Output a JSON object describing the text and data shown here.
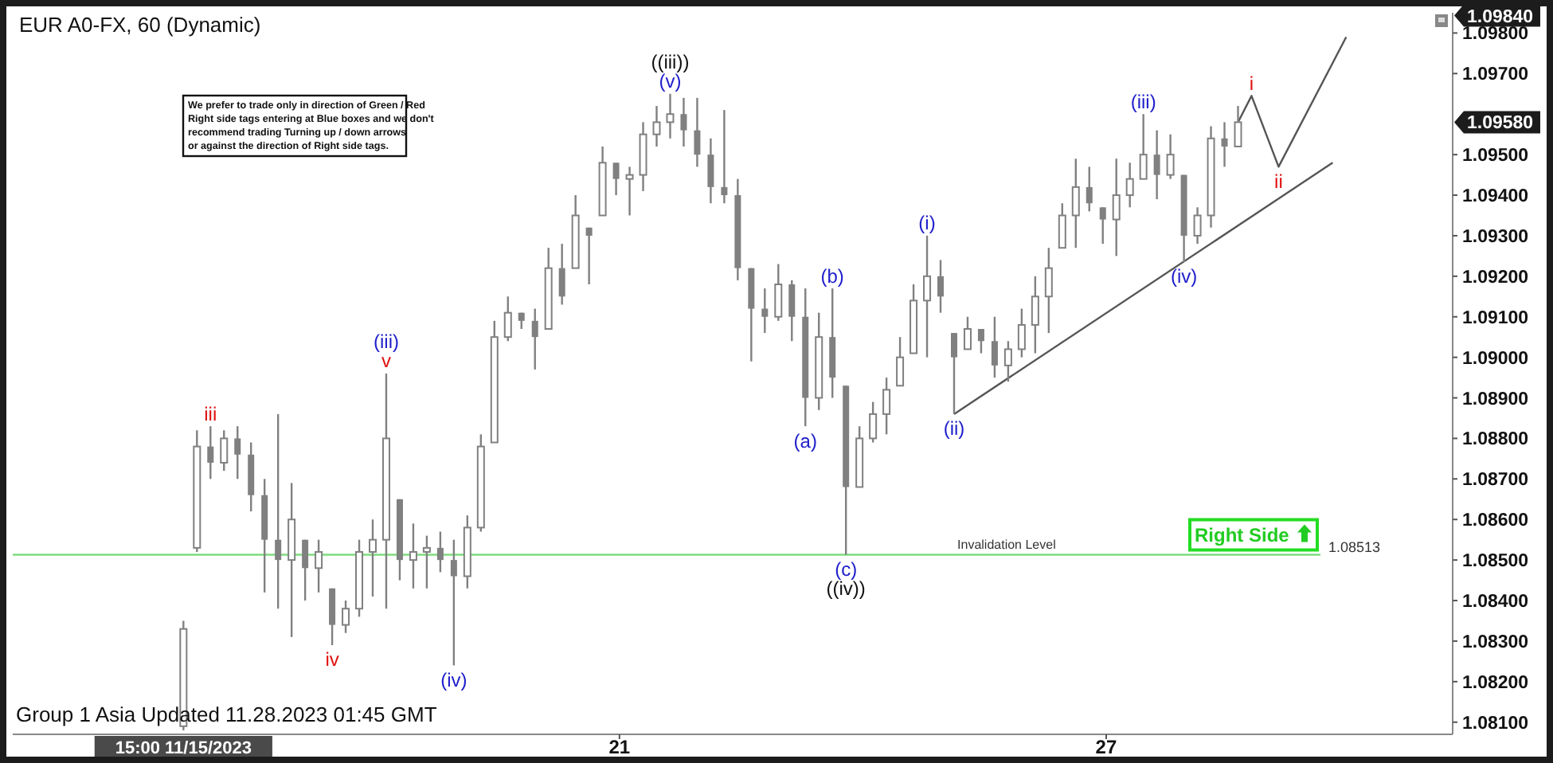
{
  "chart_data": {
    "type": "candlestick",
    "title": "EUR A0-FX, 60 (Dynamic)",
    "color": "#808080",
    "x": [
      "2023-11-15T15:00",
      "2023-11-15T19:00",
      "2023-11-15T23:00",
      "2023-11-16T03:00",
      "2023-11-16T07:00",
      "2023-11-16T11:00",
      "2023-11-16T15:00",
      "2023-11-16T19:00",
      "2023-11-16T23:00",
      "2023-11-17T03:00",
      "2023-11-17T07:00",
      "2023-11-17T11:00",
      "2023-11-17T15:00",
      "2023-11-17T19:00",
      "2023-11-17T23:00",
      "2023-11-18T03:00",
      "2023-11-18T07:00",
      "2023-11-18T11:00",
      "2023-11-18T15:00",
      "2023-11-18T19:00",
      "2023-11-18T23:00",
      "2023-11-19T03:00",
      "2023-11-19T07:00",
      "2023-11-19T11:00",
      "2023-11-19T15:00",
      "2023-11-19T19:00",
      "2023-11-19T23:00",
      "2023-11-20T03:00",
      "2023-11-20T07:00",
      "2023-11-20T11:00",
      "2023-11-20T15:00",
      "2023-11-20T19:00",
      "2023-11-20T23:00",
      "2023-11-21T03:00",
      "2023-11-21T07:00",
      "2023-11-21T11:00",
      "2023-11-21T15:00",
      "2023-11-21T19:00",
      "2023-11-21T23:00",
      "2023-11-22T03:00",
      "2023-11-22T07:00",
      "2023-11-22T11:00",
      "2023-11-22T15:00",
      "2023-11-22T19:00",
      "2023-11-22T23:00",
      "2023-11-23T03:00",
      "2023-11-23T07:00",
      "2023-11-23T11:00",
      "2023-11-23T15:00",
      "2023-11-23T19:00",
      "2023-11-23T23:00",
      "2023-11-24T03:00",
      "2023-11-24T07:00",
      "2023-11-24T11:00",
      "2023-11-24T15:00",
      "2023-11-24T19:00",
      "2023-11-24T23:00",
      "2023-11-25T03:00",
      "2023-11-25T07:00",
      "2023-11-25T11:00",
      "2023-11-25T15:00",
      "2023-11-25T19:00",
      "2023-11-25T23:00",
      "2023-11-26T03:00",
      "2023-11-26T07:00",
      "2023-11-26T11:00",
      "2023-11-26T15:00",
      "2023-11-26T19:00",
      "2023-11-26T23:00",
      "2023-11-27T03:00",
      "2023-11-27T07:00",
      "2023-11-27T11:00",
      "2023-11-27T15:00",
      "2023-11-27T19:00",
      "2023-11-27T23:00",
      "2023-11-28T03:00",
      "2023-11-28T07:00",
      "2023-11-28T11:00",
      "2023-11-28T15:00"
    ],
    "ohlc": [
      [
        1.0809,
        1.0835,
        1.0808,
        1.0833
      ],
      [
        1.0853,
        1.0882,
        1.0852,
        1.0878
      ],
      [
        1.0878,
        1.0883,
        1.087,
        1.0874
      ],
      [
        1.0874,
        1.0882,
        1.0872,
        1.088
      ],
      [
        1.088,
        1.0883,
        1.087,
        1.0876
      ],
      [
        1.0876,
        1.0879,
        1.0862,
        1.0866
      ],
      [
        1.0866,
        1.087,
        1.0842,
        1.0855
      ],
      [
        1.0855,
        1.0886,
        1.0838,
        1.085
      ],
      [
        1.085,
        1.0869,
        1.0831,
        1.086
      ],
      [
        1.0855,
        1.0855,
        1.084,
        1.0848
      ],
      [
        1.0848,
        1.0855,
        1.0842,
        1.0852
      ],
      [
        1.0843,
        1.0843,
        1.0829,
        1.0834
      ],
      [
        1.0834,
        1.084,
        1.0832,
        1.0838
      ],
      [
        1.0838,
        1.0855,
        1.0836,
        1.0852
      ],
      [
        1.0852,
        1.086,
        1.0841,
        1.0855
      ],
      [
        1.0855,
        1.0896,
        1.0838,
        1.088
      ],
      [
        1.0865,
        1.0865,
        1.0845,
        1.085
      ],
      [
        1.085,
        1.0859,
        1.0843,
        1.0852
      ],
      [
        1.0852,
        1.0856,
        1.0843,
        1.0853
      ],
      [
        1.0853,
        1.0857,
        1.0847,
        1.085
      ],
      [
        1.085,
        1.0855,
        1.0824,
        1.0846
      ],
      [
        1.0846,
        1.0861,
        1.0843,
        1.0858
      ],
      [
        1.0858,
        1.0881,
        1.0857,
        1.0878
      ],
      [
        1.0879,
        1.0909,
        1.0879,
        1.0905
      ],
      [
        1.0905,
        1.0915,
        1.0904,
        1.0911
      ],
      [
        1.0911,
        1.0911,
        1.0907,
        1.0909
      ],
      [
        1.0909,
        1.0912,
        1.0897,
        1.0905
      ],
      [
        1.0907,
        1.0927,
        1.0907,
        1.0922
      ],
      [
        1.0922,
        1.0928,
        1.0913,
        1.0915
      ],
      [
        1.0922,
        1.094,
        1.0922,
        1.0935
      ],
      [
        1.0932,
        1.0932,
        1.0918,
        1.093
      ],
      [
        1.0935,
        1.0952,
        1.0935,
        1.0948
      ],
      [
        1.0948,
        1.0948,
        1.094,
        1.0944
      ],
      [
        1.0944,
        1.0947,
        1.0935,
        1.0945
      ],
      [
        1.0945,
        1.0958,
        1.0941,
        1.0955
      ],
      [
        1.0955,
        1.0962,
        1.0952,
        1.0958
      ],
      [
        1.0958,
        1.0965,
        1.0954,
        1.096
      ],
      [
        1.096,
        1.0964,
        1.0952,
        1.0956
      ],
      [
        1.0956,
        1.0964,
        1.0947,
        1.095
      ],
      [
        1.095,
        1.0954,
        1.0938,
        1.0942
      ],
      [
        1.0942,
        1.0961,
        1.0938,
        1.094
      ],
      [
        1.094,
        1.0944,
        1.0919,
        1.0922
      ],
      [
        1.0922,
        1.0922,
        1.0899,
        1.0912
      ],
      [
        1.0912,
        1.0917,
        1.0906,
        1.091
      ],
      [
        1.091,
        1.0923,
        1.0909,
        1.0918
      ],
      [
        1.0918,
        1.0919,
        1.0904,
        1.091
      ],
      [
        1.091,
        1.0917,
        1.0883,
        1.089
      ],
      [
        1.089,
        1.0911,
        1.0887,
        1.0905
      ],
      [
        1.0905,
        1.0917,
        1.089,
        1.0895
      ],
      [
        1.0893,
        1.0893,
        1.08513,
        1.0868
      ],
      [
        1.0868,
        1.0883,
        1.0868,
        1.088
      ],
      [
        1.088,
        1.0889,
        1.0879,
        1.0886
      ],
      [
        1.0886,
        1.0895,
        1.0881,
        1.0892
      ],
      [
        1.0893,
        1.0905,
        1.0893,
        1.09
      ],
      [
        1.0901,
        1.0918,
        1.0901,
        1.0914
      ],
      [
        1.0914,
        1.093,
        1.09,
        1.092
      ],
      [
        1.092,
        1.0924,
        1.0911,
        1.0915
      ],
      [
        1.0906,
        1.0906,
        1.0886,
        1.09
      ],
      [
        1.0902,
        1.091,
        1.0902,
        1.0907
      ],
      [
        1.0907,
        1.0907,
        1.0901,
        1.0904
      ],
      [
        1.0904,
        1.091,
        1.0895,
        1.0898
      ],
      [
        1.0898,
        1.0904,
        1.0894,
        1.0902
      ],
      [
        1.0902,
        1.0912,
        1.09,
        1.0908
      ],
      [
        1.0908,
        1.092,
        1.0901,
        1.0915
      ],
      [
        1.0915,
        1.0927,
        1.0906,
        1.0922
      ],
      [
        1.0927,
        1.0938,
        1.0927,
        1.0935
      ],
      [
        1.0935,
        1.0949,
        1.0927,
        1.0942
      ],
      [
        1.0942,
        1.0947,
        1.0936,
        1.0938
      ],
      [
        1.0937,
        1.0937,
        1.0928,
        1.0934
      ],
      [
        1.0934,
        1.0949,
        1.0925,
        1.094
      ],
      [
        1.094,
        1.0948,
        1.0937,
        1.0944
      ],
      [
        1.0944,
        1.096,
        1.0944,
        1.095
      ],
      [
        1.095,
        1.0956,
        1.0939,
        1.0945
      ],
      [
        1.0945,
        1.0955,
        1.0944,
        1.095
      ],
      [
        1.0945,
        1.0945,
        1.09235,
        1.093
      ],
      [
        1.093,
        1.0937,
        1.0928,
        1.0935
      ],
      [
        1.0935,
        1.0957,
        1.0932,
        1.0954
      ],
      [
        1.0954,
        1.0958,
        1.0947,
        1.0952
      ],
      [
        1.0952,
        1.0962,
        1.0952,
        1.0958
      ]
    ],
    "series": [
      {
        "type": "line",
        "color": "#555555",
        "x": [
          "2023-11-28T15:00",
          "2023-11-28T19:00",
          "2023-11-29T03:00",
          "2023-11-29T23:00"
        ],
        "values": [
          1.0958,
          1.09645,
          1.0947,
          1.0979
        ]
      },
      {
        "type": "line",
        "color": "#555555",
        "x": [
          "2023-11-25T03:00",
          "2023-11-29T19:00"
        ],
        "values": [
          1.0886,
          1.0948
        ]
      }
    ],
    "xlim": [
      "2023-11-13T12:30",
      "2023-12-01T06:30"
    ],
    "xticks": [
      {
        "value": "2023-11-15T15:00",
        "label": "15:00 11/15/2023"
      },
      {
        "value": "2023-11-21",
        "label": "21"
      },
      {
        "value": "2023-11-27",
        "label": "27"
      }
    ],
    "ylim": [
      1.0807,
      1.0985
    ],
    "yticks": [
      {
        "value": 1.081,
        "label": "1.08100"
      },
      {
        "value": 1.082,
        "label": "1.08200"
      },
      {
        "value": 1.083,
        "label": "1.08300"
      },
      {
        "value": 1.084,
        "label": "1.08400"
      },
      {
        "value": 1.085,
        "label": "1.08500"
      },
      {
        "value": 1.086,
        "label": "1.08600"
      },
      {
        "value": 1.087,
        "label": "1.08700"
      },
      {
        "value": 1.088,
        "label": "1.08800"
      },
      {
        "value": 1.089,
        "label": "1.08900"
      },
      {
        "value": 1.09,
        "label": "1.09000"
      },
      {
        "value": 1.091,
        "label": "1.09100"
      },
      {
        "value": 1.092,
        "label": "1.09200"
      },
      {
        "value": 1.093,
        "label": "1.09300"
      },
      {
        "value": 1.094,
        "label": "1.09400"
      },
      {
        "value": 1.095,
        "label": "1.09500"
      },
      {
        "value": 1.097,
        "label": "1.09700"
      },
      {
        "value": 1.098,
        "label": "1.09800"
      }
    ],
    "ref_lines": [
      {
        "axis": "y",
        "value": 1.08513,
        "label": "Invalidation Level",
        "color": "#7ddc7d"
      }
    ],
    "annotations": [
      "We prefer to trade only in direction of Green / Red\nRight side tags entering at Blue boxes and we don't\nrecommend trading Turning up / down arrows\nor against the direction of Right side tags.",
      "Group 1 Asia Updated 11.28.2023 01:45 GMT",
      "Right Side",
      "1.08513",
      "1.09840",
      "1.09580",
      {
        "text": "iii",
        "x": "2023-11-15T23:00",
        "y": 1.0883
      },
      {
        "text": "v",
        "x": "2023-11-18T03:00",
        "y": 1.0896
      },
      {
        "text": "(iii)",
        "x": "2023-11-18T03:00",
        "y": 1.0896
      },
      {
        "text": "iv",
        "x": "2023-11-17T11:00",
        "y": 1.0829
      },
      {
        "text": "(iv)",
        "x": "2023-11-18T23:00",
        "y": 1.0824
      },
      {
        "text": "(v)",
        "x": "2023-11-21T15:00",
        "y": 1.0965
      },
      {
        "text": "((iii))",
        "x": "2023-11-21T15:00",
        "y": 1.0965
      },
      {
        "text": "(a)",
        "x": "2023-11-23T07:00",
        "y": 1.0883
      },
      {
        "text": "(b)",
        "x": "2023-11-23T15:00",
        "y": 1.0917
      },
      {
        "text": "(c)",
        "x": "2023-11-23T19:00",
        "y": 1.08513
      },
      {
        "text": "((iv))",
        "x": "2023-11-23T19:00",
        "y": 1.08513
      },
      {
        "text": "(i)",
        "x": "2023-11-24T19:00",
        "y": 1.093
      },
      {
        "text": "(ii)",
        "x": "2023-11-25T03:00",
        "y": 1.0886
      },
      {
        "text": "(iii)",
        "x": "2023-11-27T11:00",
        "y": 1.096
      },
      {
        "text": "(iv)",
        "x": "2023-11-27T23:00",
        "y": 1.09235
      },
      {
        "text": "i",
        "x": "2023-11-28T19:00",
        "y": 1.09645
      },
      {
        "text": "ii",
        "x": "2023-11-29T03:00",
        "y": 1.0947
      }
    ]
  }
}
